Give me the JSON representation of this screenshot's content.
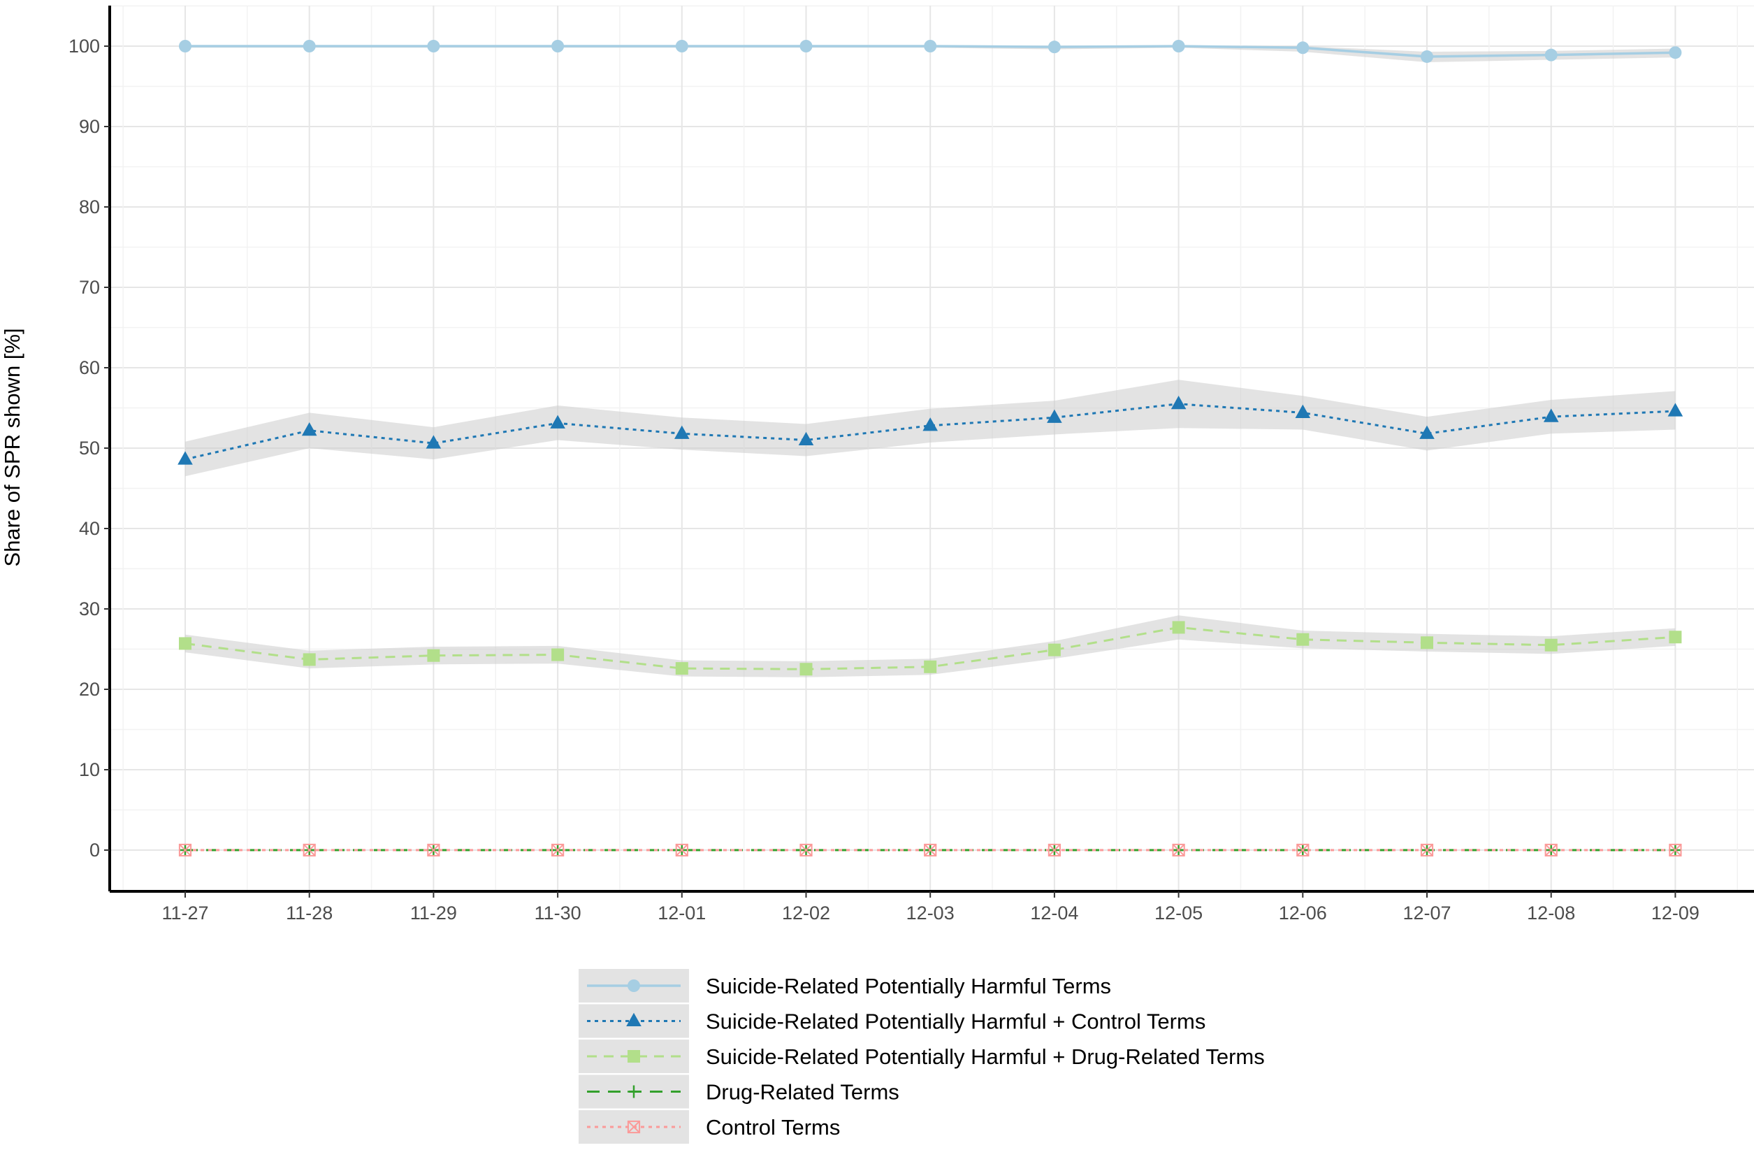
{
  "chart_data": {
    "type": "line",
    "title": "",
    "xlabel": "",
    "ylabel": "Share of SPR shown [%]",
    "categories": [
      "11-27",
      "11-28",
      "11-29",
      "11-30",
      "12-01",
      "12-02",
      "12-03",
      "12-04",
      "12-05",
      "12-06",
      "12-07",
      "12-08",
      "12-09"
    ],
    "y_ticks": [
      "0",
      "10",
      "20",
      "30",
      "40",
      "50",
      "60",
      "70",
      "80",
      "90",
      "100"
    ],
    "ylim": [
      -5,
      105
    ],
    "grid": true,
    "legend_position": "bottom",
    "series": [
      {
        "name": "Suicide-Related Potentially Harmful Terms",
        "color": "#a6cee3",
        "line_style": "solid",
        "marker": "circle",
        "values": [
          100,
          100,
          100,
          100,
          100,
          100,
          100,
          99.9,
          100,
          99.8,
          98.7,
          98.9,
          99.2
        ],
        "ci_lower": [
          99.8,
          99.8,
          99.8,
          99.8,
          99.8,
          99.8,
          99.8,
          99.6,
          99.8,
          99.3,
          98.0,
          98.3,
          98.6
        ],
        "ci_upper": [
          100,
          100,
          100,
          100,
          100,
          100,
          100,
          100,
          100,
          100,
          99.3,
          99.4,
          99.7
        ]
      },
      {
        "name": "Suicide-Related Potentially Harmful + Control Terms",
        "color": "#1f78b4",
        "line_style": "dotted",
        "marker": "triangle",
        "values": [
          48.6,
          52.2,
          50.6,
          53.1,
          51.8,
          51.0,
          52.8,
          53.8,
          55.5,
          54.4,
          51.8,
          53.9,
          54.6
        ],
        "ci_lower": [
          46.5,
          50.0,
          48.6,
          51.0,
          49.8,
          49.0,
          50.7,
          51.7,
          52.5,
          52.3,
          49.7,
          51.8,
          52.3
        ],
        "ci_upper": [
          50.8,
          54.4,
          52.6,
          55.3,
          53.8,
          53.0,
          54.9,
          55.9,
          58.5,
          56.5,
          53.9,
          56.0,
          57.1
        ]
      },
      {
        "name": "Suicide-Related Potentially Harmful + Drug-Related Terms",
        "color": "#b2df8a",
        "line_style": "dashed",
        "marker": "square",
        "values": [
          25.7,
          23.7,
          24.2,
          24.3,
          22.6,
          22.5,
          22.8,
          24.9,
          27.7,
          26.2,
          25.8,
          25.5,
          26.5
        ],
        "ci_lower": [
          24.6,
          22.6,
          23.1,
          23.2,
          21.6,
          21.5,
          21.8,
          23.8,
          26.2,
          25.1,
          24.7,
          24.4,
          25.4
        ],
        "ci_upper": [
          26.8,
          24.8,
          25.3,
          25.4,
          23.6,
          23.5,
          23.8,
          26.0,
          29.2,
          27.3,
          26.9,
          26.6,
          27.6
        ]
      },
      {
        "name": "Drug-Related Terms",
        "color": "#33a02c",
        "line_style": "longdash",
        "marker": "plus",
        "values": [
          0,
          0,
          0,
          0,
          0,
          0,
          0,
          0,
          0,
          0,
          0,
          0,
          0
        ],
        "ci_lower": [
          0,
          0,
          0,
          0,
          0,
          0,
          0,
          0,
          0,
          0,
          0,
          0,
          0
        ],
        "ci_upper": [
          0,
          0,
          0,
          0,
          0,
          0,
          0,
          0,
          0,
          0,
          0,
          0,
          0
        ]
      },
      {
        "name": "Control Terms",
        "color": "#fb9a99",
        "line_style": "dotted",
        "marker": "boxed-x",
        "values": [
          0,
          0,
          0,
          0,
          0,
          0,
          0,
          0,
          0,
          0,
          0,
          0,
          0
        ],
        "ci_lower": [
          0,
          0,
          0,
          0,
          0,
          0,
          0,
          0,
          0,
          0,
          0,
          0,
          0
        ],
        "ci_upper": [
          0,
          0,
          0,
          0,
          0,
          0,
          0,
          0,
          0,
          0,
          0,
          0,
          0
        ]
      }
    ]
  }
}
